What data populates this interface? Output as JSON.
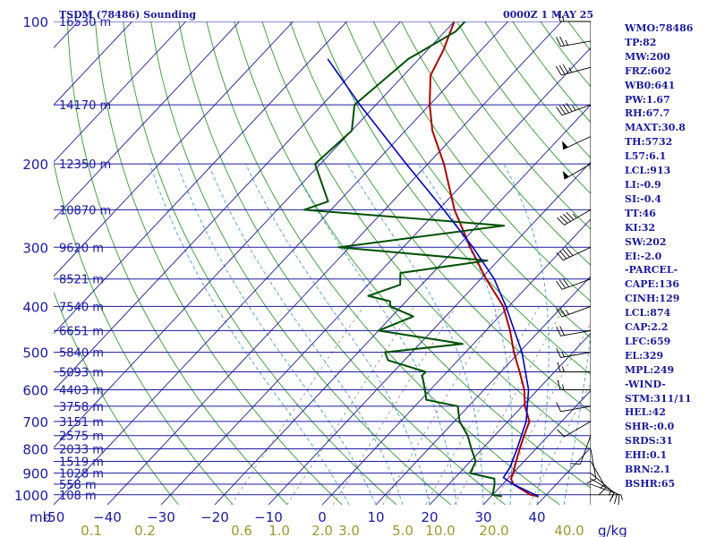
{
  "header": {
    "station": "TSDM (78486) Sounding",
    "time": "0000Z  1 MAY 25"
  },
  "stats": [
    "WMO:78486",
    "TP:82",
    "MW:200",
    "FRZ:602",
    "WB0:641",
    "PW:1.67",
    "RH:67.7",
    "MAXT:30.8",
    "TH:5732",
    "L57:6.1",
    "LCL:913",
    "LI:-0.9",
    "SI:-0.4",
    "TT:46",
    "KI:32",
    "SW:202",
    "EI:-2.0",
    "-PARCEL-",
    "CAPE:136",
    "CINH:129",
    "LCL:874",
    "CAP:2.2",
    "LFC:659",
    "EL:329",
    "MPL:249",
    "-WIND-",
    "STM:311/11",
    "HEL:42",
    "SHR-:0.0",
    "SRDS:31",
    "EHI:0.1",
    "BRN:2.1",
    "BSHR:65"
  ],
  "colors": {
    "isobar": "#1a1aa0",
    "isotherm": "#1a1aa0",
    "dry_adiabat": "#2e9a2e",
    "moist_adiabat": "#4a9ec8",
    "mixing_ratio": "#8a8a7a",
    "temperature": "#b00000",
    "dewpoint": "#005000",
    "parcel": "#0000c0",
    "label": "#1a1aa0",
    "mixing_label": "#9a9a30"
  },
  "chart_data": {
    "type": "skew-t",
    "pressure_axis": {
      "unit": "mb",
      "ticks": [
        100,
        200,
        300,
        400,
        500,
        600,
        700,
        800,
        900,
        1000
      ],
      "labels": [
        "100",
        "200",
        "300",
        "400",
        "500",
        "600",
        "700",
        "800",
        "900",
        "1000"
      ],
      "range": [
        100,
        1000
      ],
      "scale": "log"
    },
    "temperature_axis": {
      "unit": "C",
      "ticks": [
        -50,
        -40,
        -30,
        -20,
        -10,
        0,
        10,
        20,
        30,
        40
      ],
      "labels": [
        "-50",
        "−40",
        "−30",
        "−20",
        "−10",
        "0",
        "10",
        "20",
        "30",
        "40"
      ],
      "range": [
        -50,
        40
      ]
    },
    "pressure_prefix": "mb",
    "mixing_ratio_unit": "g/kg",
    "mixing_ratio_labels": [
      "0.1",
      "0.2",
      "0.6",
      "1.0",
      "2.0",
      "3.0",
      "5.0",
      "10.0",
      "20.0",
      "40.0"
    ],
    "mixing_ratio_label_x_temp": [
      -43,
      -33,
      -15,
      -8,
      0,
      5,
      15,
      22,
      32,
      46
    ],
    "mixing_ratio_lines": [
      0.4,
      1,
      2,
      4,
      7,
      10,
      16,
      24
    ],
    "heights": [
      {
        "p": 100,
        "label": "16530 m"
      },
      {
        "p": 150,
        "label": "14170 m"
      },
      {
        "p": 200,
        "label": "12350 m"
      },
      {
        "p": 250,
        "label": "10870 m"
      },
      {
        "p": 300,
        "label": "9620 m"
      },
      {
        "p": 350,
        "label": "8521 m"
      },
      {
        "p": 400,
        "label": "7540 m"
      },
      {
        "p": 450,
        "label": "6651 m"
      },
      {
        "p": 500,
        "label": "5840 m"
      },
      {
        "p": 550,
        "label": "5093 m"
      },
      {
        "p": 600,
        "label": "4403 m"
      },
      {
        "p": 650,
        "label": "3758 m"
      },
      {
        "p": 700,
        "label": "3151 m"
      },
      {
        "p": 750,
        "label": "2575 m"
      },
      {
        "p": 800,
        "label": "2033 m"
      },
      {
        "p": 850,
        "label": "1519 m"
      },
      {
        "p": 900,
        "label": "1028 m"
      },
      {
        "p": 950,
        "label": "558 m"
      },
      {
        "p": 1000,
        "label": "108 m"
      }
    ],
    "series": [
      {
        "key": "temperature",
        "points": [
          [
            1008,
            28.8
          ],
          [
            1000,
            27
          ],
          [
            950,
            22
          ],
          [
            925,
            20.6
          ],
          [
            900,
            20
          ],
          [
            850,
            18.5
          ],
          [
            800,
            17
          ],
          [
            750,
            15.5
          ],
          [
            700,
            14
          ],
          [
            650,
            10.5
          ],
          [
            600,
            7.5
          ],
          [
            550,
            3.5
          ],
          [
            500,
            -1
          ],
          [
            450,
            -5.5
          ],
          [
            400,
            -11
          ],
          [
            350,
            -19
          ],
          [
            300,
            -27.5
          ],
          [
            250,
            -37
          ],
          [
            200,
            -47
          ],
          [
            170,
            -55
          ],
          [
            150,
            -60
          ],
          [
            130,
            -65
          ],
          [
            115,
            -67
          ],
          [
            100,
            -70
          ]
        ]
      },
      {
        "key": "dewpoint",
        "points": [
          [
            1008,
            22
          ],
          [
            1000,
            20
          ],
          [
            950,
            18.5
          ],
          [
            925,
            17.5
          ],
          [
            900,
            12
          ],
          [
            850,
            11
          ],
          [
            800,
            8
          ],
          [
            750,
            5
          ],
          [
            700,
            1
          ],
          [
            650,
            -2
          ],
          [
            630,
            -9
          ],
          [
            600,
            -11
          ],
          [
            560,
            -14
          ],
          [
            550,
            -14
          ],
          [
            520,
            -23
          ],
          [
            500,
            -25
          ],
          [
            480,
            -12
          ],
          [
            450,
            -30
          ],
          [
            420,
            -26
          ],
          [
            400,
            -32
          ],
          [
            390,
            -33
          ],
          [
            380,
            -38
          ],
          [
            360,
            -34
          ],
          [
            340,
            -36
          ],
          [
            320,
            -22
          ],
          [
            300,
            -52
          ],
          [
            270,
            -25
          ],
          [
            250,
            -65
          ],
          [
            240,
            -62
          ],
          [
            200,
            -71
          ],
          [
            170,
            -70
          ],
          [
            150,
            -74
          ],
          [
            120,
            -72
          ],
          [
            105,
            -68
          ],
          [
            100,
            -68
          ]
        ]
      },
      {
        "key": "parcel",
        "points": [
          [
            1008,
            28.8
          ],
          [
            950,
            21.9
          ],
          [
            920,
            19
          ],
          [
            874,
            18.4
          ],
          [
            800,
            16.5
          ],
          [
            700,
            13.4
          ],
          [
            600,
            8.3
          ],
          [
            500,
            0.5
          ],
          [
            400,
            -10.5
          ],
          [
            350,
            -17.5
          ],
          [
            300,
            -27
          ],
          [
            250,
            -39
          ],
          [
            200,
            -54
          ],
          [
            150,
            -73
          ],
          [
            120,
            -87
          ]
        ]
      }
    ],
    "winds": [
      [
        1000,
        90,
        5
      ],
      [
        950,
        110,
        10
      ],
      [
        925,
        120,
        15
      ],
      [
        900,
        130,
        15
      ],
      [
        850,
        150,
        15
      ],
      [
        800,
        170,
        10
      ],
      [
        750,
        200,
        10
      ],
      [
        700,
        240,
        10
      ],
      [
        650,
        260,
        10
      ],
      [
        600,
        270,
        15
      ],
      [
        550,
        270,
        15
      ],
      [
        500,
        260,
        15
      ],
      [
        450,
        260,
        20
      ],
      [
        400,
        250,
        25
      ],
      [
        350,
        250,
        30
      ],
      [
        300,
        245,
        40
      ],
      [
        250,
        240,
        45
      ],
      [
        200,
        240,
        50
      ],
      [
        175,
        245,
        50
      ],
      [
        150,
        250,
        45
      ],
      [
        125,
        255,
        35
      ],
      [
        110,
        260,
        25
      ],
      [
        100,
        270,
        15
      ]
    ]
  }
}
